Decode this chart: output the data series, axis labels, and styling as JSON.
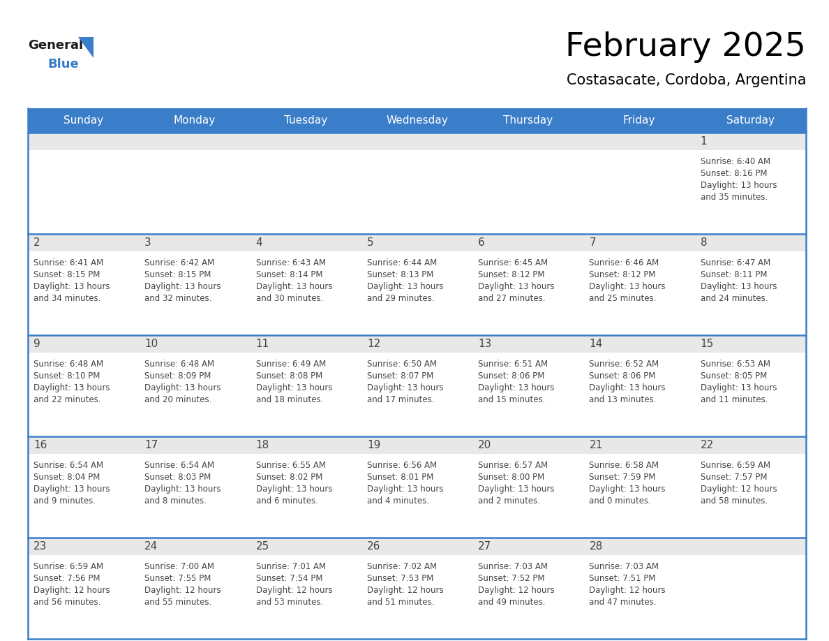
{
  "title": "February 2025",
  "subtitle": "Costasacate, Cordoba, Argentina",
  "header_color": "#3A7DC9",
  "header_text_color": "#FFFFFF",
  "cell_top_bg_color": "#E8E8E8",
  "cell_body_bg_color": "#FFFFFF",
  "border_color": "#3A7DC9",
  "text_color": "#444444",
  "day_num_color": "#444444",
  "day_headers": [
    "Sunday",
    "Monday",
    "Tuesday",
    "Wednesday",
    "Thursday",
    "Friday",
    "Saturday"
  ],
  "weeks": [
    [
      {
        "day": null,
        "info": null
      },
      {
        "day": null,
        "info": null
      },
      {
        "day": null,
        "info": null
      },
      {
        "day": null,
        "info": null
      },
      {
        "day": null,
        "info": null
      },
      {
        "day": null,
        "info": null
      },
      {
        "day": 1,
        "info": "Sunrise: 6:40 AM\nSunset: 8:16 PM\nDaylight: 13 hours\nand 35 minutes."
      }
    ],
    [
      {
        "day": 2,
        "info": "Sunrise: 6:41 AM\nSunset: 8:15 PM\nDaylight: 13 hours\nand 34 minutes."
      },
      {
        "day": 3,
        "info": "Sunrise: 6:42 AM\nSunset: 8:15 PM\nDaylight: 13 hours\nand 32 minutes."
      },
      {
        "day": 4,
        "info": "Sunrise: 6:43 AM\nSunset: 8:14 PM\nDaylight: 13 hours\nand 30 minutes."
      },
      {
        "day": 5,
        "info": "Sunrise: 6:44 AM\nSunset: 8:13 PM\nDaylight: 13 hours\nand 29 minutes."
      },
      {
        "day": 6,
        "info": "Sunrise: 6:45 AM\nSunset: 8:12 PM\nDaylight: 13 hours\nand 27 minutes."
      },
      {
        "day": 7,
        "info": "Sunrise: 6:46 AM\nSunset: 8:12 PM\nDaylight: 13 hours\nand 25 minutes."
      },
      {
        "day": 8,
        "info": "Sunrise: 6:47 AM\nSunset: 8:11 PM\nDaylight: 13 hours\nand 24 minutes."
      }
    ],
    [
      {
        "day": 9,
        "info": "Sunrise: 6:48 AM\nSunset: 8:10 PM\nDaylight: 13 hours\nand 22 minutes."
      },
      {
        "day": 10,
        "info": "Sunrise: 6:48 AM\nSunset: 8:09 PM\nDaylight: 13 hours\nand 20 minutes."
      },
      {
        "day": 11,
        "info": "Sunrise: 6:49 AM\nSunset: 8:08 PM\nDaylight: 13 hours\nand 18 minutes."
      },
      {
        "day": 12,
        "info": "Sunrise: 6:50 AM\nSunset: 8:07 PM\nDaylight: 13 hours\nand 17 minutes."
      },
      {
        "day": 13,
        "info": "Sunrise: 6:51 AM\nSunset: 8:06 PM\nDaylight: 13 hours\nand 15 minutes."
      },
      {
        "day": 14,
        "info": "Sunrise: 6:52 AM\nSunset: 8:06 PM\nDaylight: 13 hours\nand 13 minutes."
      },
      {
        "day": 15,
        "info": "Sunrise: 6:53 AM\nSunset: 8:05 PM\nDaylight: 13 hours\nand 11 minutes."
      }
    ],
    [
      {
        "day": 16,
        "info": "Sunrise: 6:54 AM\nSunset: 8:04 PM\nDaylight: 13 hours\nand 9 minutes."
      },
      {
        "day": 17,
        "info": "Sunrise: 6:54 AM\nSunset: 8:03 PM\nDaylight: 13 hours\nand 8 minutes."
      },
      {
        "day": 18,
        "info": "Sunrise: 6:55 AM\nSunset: 8:02 PM\nDaylight: 13 hours\nand 6 minutes."
      },
      {
        "day": 19,
        "info": "Sunrise: 6:56 AM\nSunset: 8:01 PM\nDaylight: 13 hours\nand 4 minutes."
      },
      {
        "day": 20,
        "info": "Sunrise: 6:57 AM\nSunset: 8:00 PM\nDaylight: 13 hours\nand 2 minutes."
      },
      {
        "day": 21,
        "info": "Sunrise: 6:58 AM\nSunset: 7:59 PM\nDaylight: 13 hours\nand 0 minutes."
      },
      {
        "day": 22,
        "info": "Sunrise: 6:59 AM\nSunset: 7:57 PM\nDaylight: 12 hours\nand 58 minutes."
      }
    ],
    [
      {
        "day": 23,
        "info": "Sunrise: 6:59 AM\nSunset: 7:56 PM\nDaylight: 12 hours\nand 56 minutes."
      },
      {
        "day": 24,
        "info": "Sunrise: 7:00 AM\nSunset: 7:55 PM\nDaylight: 12 hours\nand 55 minutes."
      },
      {
        "day": 25,
        "info": "Sunrise: 7:01 AM\nSunset: 7:54 PM\nDaylight: 12 hours\nand 53 minutes."
      },
      {
        "day": 26,
        "info": "Sunrise: 7:02 AM\nSunset: 7:53 PM\nDaylight: 12 hours\nand 51 minutes."
      },
      {
        "day": 27,
        "info": "Sunrise: 7:03 AM\nSunset: 7:52 PM\nDaylight: 12 hours\nand 49 minutes."
      },
      {
        "day": 28,
        "info": "Sunrise: 7:03 AM\nSunset: 7:51 PM\nDaylight: 12 hours\nand 47 minutes."
      },
      {
        "day": null,
        "info": null
      }
    ]
  ],
  "logo_text_general": "General",
  "logo_text_blue": "Blue",
  "logo_color_general": "#1a1a1a",
  "logo_color_blue": "#3A7DC9",
  "logo_triangle_color": "#3A7DC9",
  "title_fontsize": 34,
  "subtitle_fontsize": 15,
  "header_fontsize": 11,
  "day_num_fontsize": 11,
  "info_fontsize": 8.5
}
